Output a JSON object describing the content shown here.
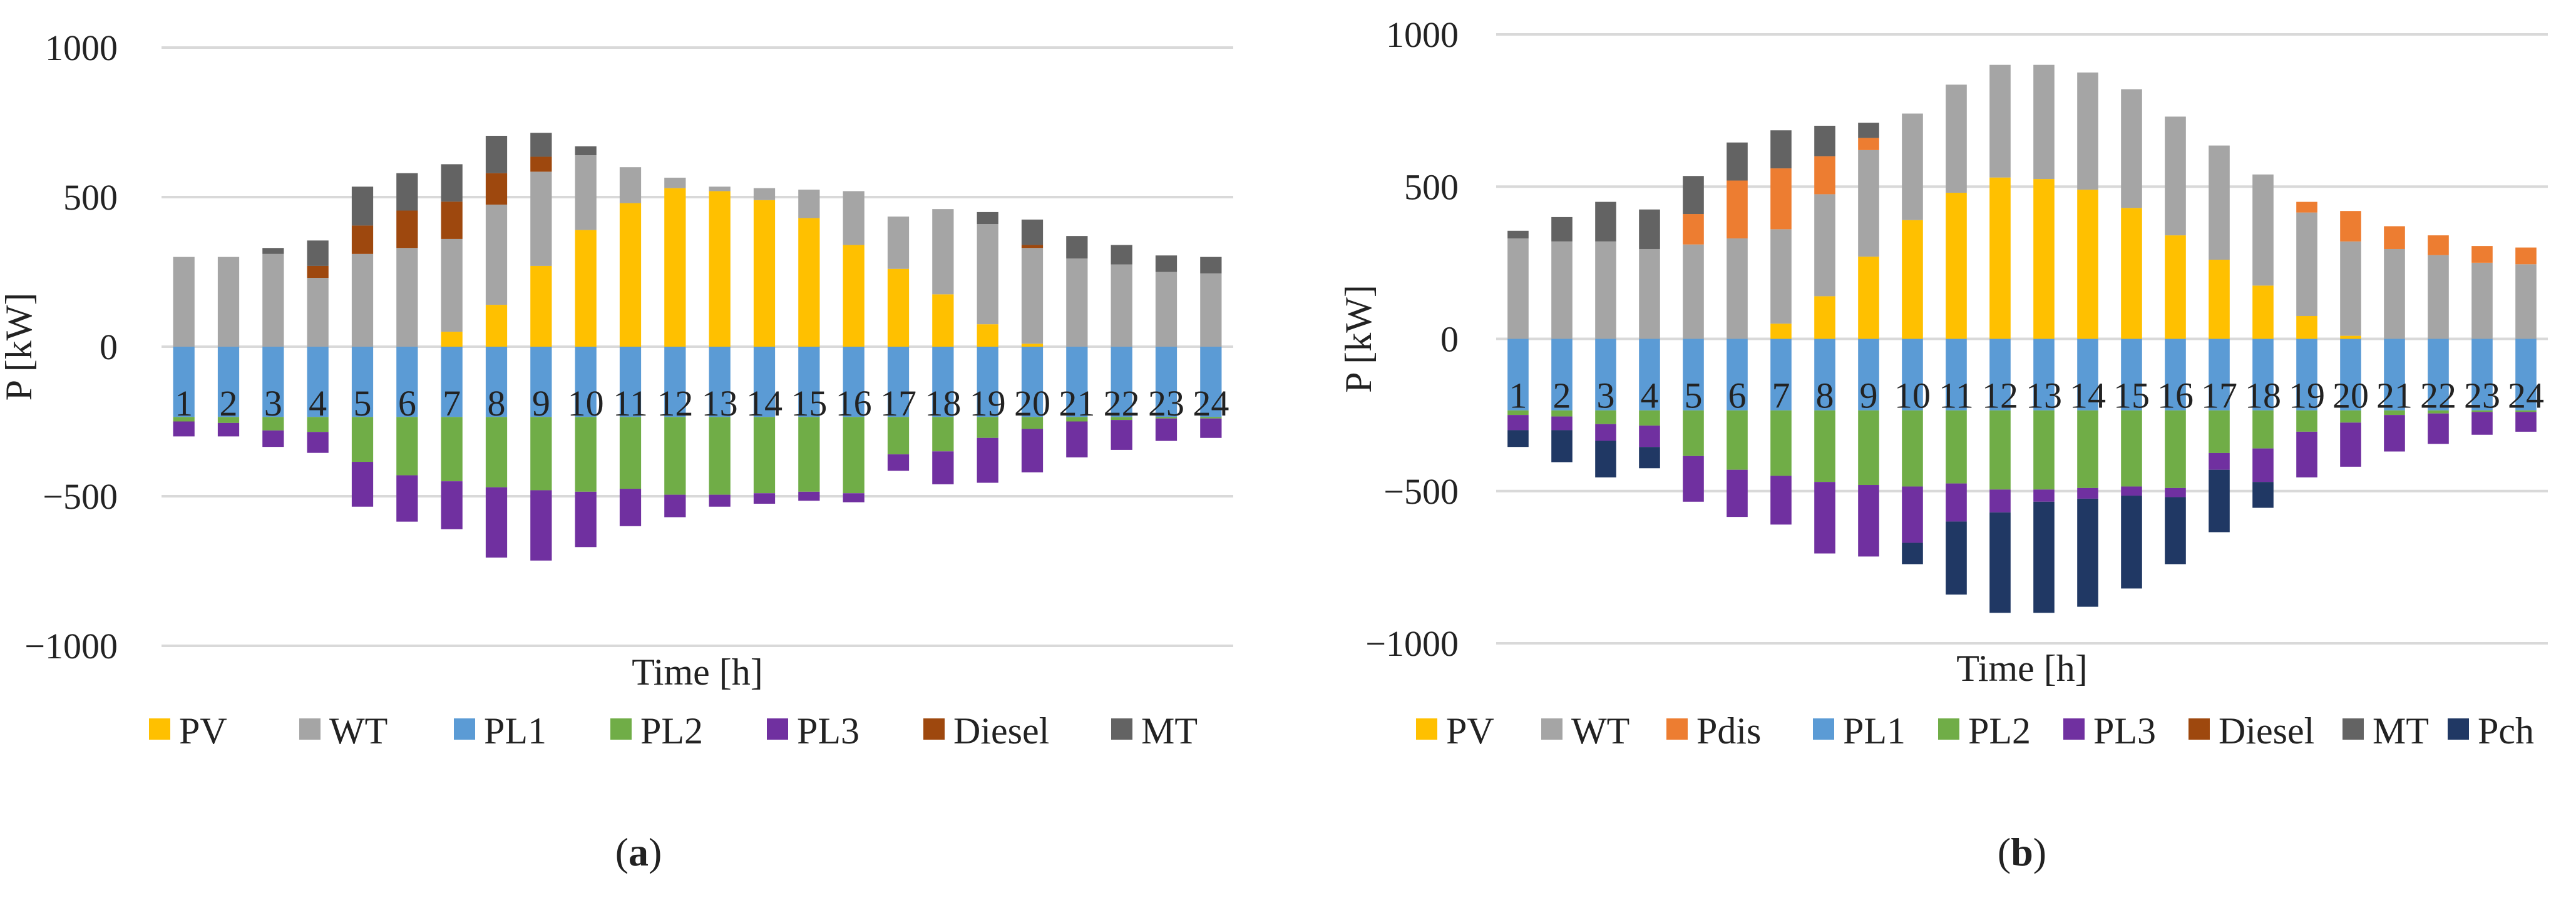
{
  "colors": {
    "PV": "#FFC000",
    "WT": "#A5A5A5",
    "Pdis": "#ED7D31",
    "PL1": "#5B9BD5",
    "PL2": "#70AD47",
    "PL3": "#7030A0",
    "Diesel": "#9E480E",
    "MT": "#636363",
    "Pch": "#203864",
    "grid": "#D9D9D9"
  },
  "chart_data": [
    {
      "type": "bar",
      "stacked": true,
      "panel_label": "a",
      "title": "",
      "xlabel": "Time [h]",
      "ylabel": "P [kW]",
      "ylim": [
        -1000,
        1000
      ],
      "yticks": [
        1000,
        500,
        0,
        -500,
        -1000
      ],
      "ytick_labels": [
        "1000",
        "500",
        "0",
        "−500",
        "−1000"
      ],
      "grid": true,
      "legend_position": "bottom",
      "categories": [
        "1",
        "2",
        "3",
        "4",
        "5",
        "6",
        "7",
        "8",
        "9",
        "10",
        "11",
        "12",
        "13",
        "14",
        "15",
        "16",
        "17",
        "18",
        "19",
        "20",
        "21",
        "22",
        "23",
        "24"
      ],
      "series": [
        {
          "name": "PV",
          "values": [
            0,
            0,
            0,
            0,
            0,
            0,
            50,
            140,
            270,
            390,
            480,
            530,
            520,
            490,
            430,
            340,
            260,
            175,
            75,
            10,
            0,
            0,
            0,
            0
          ]
        },
        {
          "name": "WT",
          "values": [
            300,
            300,
            310,
            230,
            310,
            330,
            310,
            335,
            315,
            250,
            120,
            35,
            15,
            40,
            95,
            180,
            175,
            285,
            335,
            320,
            295,
            275,
            250,
            245
          ]
        },
        {
          "name": "PL1",
          "values": [
            -235,
            -235,
            -235,
            -235,
            -235,
            -235,
            -235,
            -235,
            -235,
            -235,
            -235,
            -235,
            -235,
            -235,
            -235,
            -235,
            -235,
            -235,
            -235,
            -235,
            -235,
            -235,
            -235,
            -235
          ]
        },
        {
          "name": "PL2",
          "values": [
            -15,
            -20,
            -45,
            -50,
            -150,
            -195,
            -215,
            -235,
            -245,
            -250,
            -240,
            -260,
            -260,
            -255,
            -250,
            -255,
            -125,
            -115,
            -70,
            -40,
            -15,
            -10,
            -5,
            -5
          ]
        },
        {
          "name": "PL3",
          "values": [
            -50,
            -45,
            -55,
            -70,
            -150,
            -155,
            -160,
            -235,
            -235,
            -185,
            -125,
            -75,
            -40,
            -35,
            -30,
            -30,
            -55,
            -110,
            -150,
            -145,
            -120,
            -100,
            -75,
            -65
          ]
        },
        {
          "name": "Diesel",
          "values": [
            0,
            0,
            0,
            40,
            95,
            125,
            125,
            105,
            50,
            0,
            0,
            0,
            0,
            0,
            0,
            0,
            0,
            0,
            0,
            10,
            0,
            0,
            0,
            0
          ]
        },
        {
          "name": "MT",
          "values": [
            0,
            0,
            20,
            85,
            130,
            125,
            125,
            125,
            80,
            30,
            0,
            0,
            0,
            0,
            0,
            0,
            0,
            0,
            40,
            85,
            75,
            65,
            55,
            55
          ]
        }
      ]
    },
    {
      "type": "bar",
      "stacked": true,
      "panel_label": "b",
      "title": "",
      "xlabel": "Time [h]",
      "ylabel": "P [kW]",
      "ylim": [
        -1000,
        1000
      ],
      "yticks": [
        1000,
        500,
        0,
        -500,
        -1000
      ],
      "ytick_labels": [
        "1000",
        "500",
        "0",
        "−500",
        "−1000"
      ],
      "grid": true,
      "legend_position": "bottom",
      "categories": [
        "1",
        "2",
        "3",
        "4",
        "5",
        "6",
        "7",
        "8",
        "9",
        "10",
        "11",
        "12",
        "13",
        "14",
        "15",
        "16",
        "17",
        "18",
        "19",
        "20",
        "21",
        "22",
        "23",
        "24"
      ],
      "series": [
        {
          "name": "PV",
          "values": [
            0,
            0,
            0,
            0,
            0,
            0,
            50,
            140,
            270,
            390,
            480,
            530,
            525,
            490,
            430,
            340,
            260,
            175,
            75,
            10,
            0,
            0,
            0,
            0
          ]
        },
        {
          "name": "WT",
          "values": [
            330,
            320,
            320,
            295,
            310,
            330,
            310,
            335,
            350,
            350,
            355,
            370,
            375,
            385,
            390,
            390,
            375,
            365,
            340,
            310,
            295,
            275,
            250,
            245
          ]
        },
        {
          "name": "Pdis",
          "values": [
            0,
            0,
            0,
            0,
            100,
            190,
            200,
            125,
            40,
            0,
            0,
            0,
            0,
            0,
            0,
            0,
            0,
            0,
            35,
            100,
            75,
            65,
            55,
            55
          ]
        },
        {
          "name": "PL1",
          "values": [
            -235,
            -235,
            -235,
            -235,
            -235,
            -235,
            -235,
            -235,
            -235,
            -235,
            -235,
            -235,
            -235,
            -235,
            -235,
            -235,
            -235,
            -235,
            -235,
            -235,
            -235,
            -235,
            -235,
            -235
          ]
        },
        {
          "name": "PL2",
          "values": [
            -15,
            -20,
            -45,
            -50,
            -150,
            -195,
            -215,
            -235,
            -245,
            -250,
            -240,
            -260,
            -260,
            -255,
            -250,
            -255,
            -140,
            -125,
            -70,
            -40,
            -15,
            -10,
            -5,
            -5
          ]
        },
        {
          "name": "PL3",
          "values": [
            -50,
            -45,
            -55,
            -70,
            -150,
            -155,
            -160,
            -235,
            -235,
            -185,
            -125,
            -75,
            -40,
            -35,
            -30,
            -30,
            -55,
            -110,
            -150,
            -145,
            -120,
            -100,
            -75,
            -65
          ]
        },
        {
          "name": "Diesel",
          "values": [
            0,
            0,
            0,
            0,
            0,
            0,
            0,
            0,
            0,
            0,
            0,
            0,
            0,
            0,
            0,
            0,
            0,
            0,
            0,
            0,
            0,
            0,
            0,
            0
          ]
        },
        {
          "name": "MT",
          "values": [
            25,
            80,
            130,
            130,
            125,
            125,
            125,
            100,
            50,
            0,
            0,
            0,
            0,
            0,
            0,
            0,
            0,
            0,
            0,
            0,
            0,
            0,
            0,
            0
          ]
        },
        {
          "name": "Pch",
          "values": [
            -55,
            -105,
            -120,
            -70,
            0,
            0,
            0,
            0,
            0,
            -70,
            -240,
            -330,
            -365,
            -355,
            -305,
            -220,
            -205,
            -85,
            0,
            0,
            0,
            0,
            0,
            0
          ]
        }
      ]
    }
  ]
}
